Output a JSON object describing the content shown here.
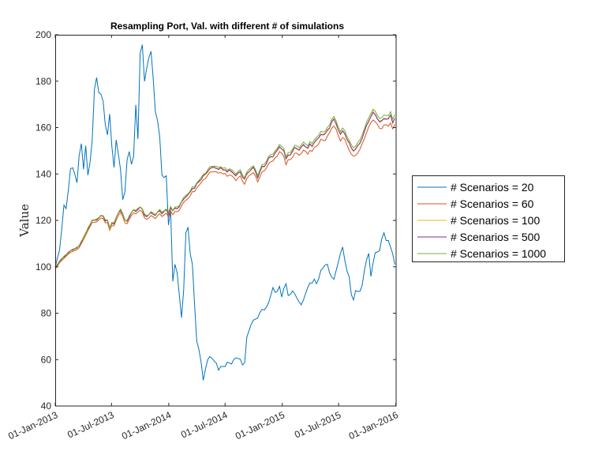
{
  "chart_data": {
    "type": "line",
    "title": "Resampling Port, Val. with different # of simulations",
    "xlabel": "",
    "ylabel": "Value",
    "x_start": "2013-01-01",
    "x_end": "2016-01-01",
    "x_step": "weekly",
    "xticks": [
      "01-Jan-2013",
      "01-Jul-2013",
      "01-Jan-2014",
      "01-Jul-2014",
      "01-Jan-2015",
      "01-Jul-2015",
      "01-Jan-2016"
    ],
    "ylim": [
      40,
      200
    ],
    "yticks": [
      "40",
      "60",
      "80",
      "100",
      "120",
      "140",
      "160",
      "180",
      "200"
    ],
    "grid": false,
    "legend_position": "outside-right",
    "series": [
      {
        "name": "# Scenarios = 20",
        "color": "#0072BD",
        "key": [
          [
            0,
            100
          ],
          [
            2,
            108
          ],
          [
            4,
            130
          ],
          [
            5,
            122
          ],
          [
            6,
            142
          ],
          [
            8,
            143
          ],
          [
            9,
            133
          ],
          [
            10,
            147
          ],
          [
            11,
            154
          ],
          [
            12,
            142
          ],
          [
            13,
            153
          ],
          [
            14,
            137
          ],
          [
            16,
            158
          ],
          [
            17,
            188
          ],
          [
            18,
            176
          ],
          [
            19,
            174
          ],
          [
            20,
            175
          ],
          [
            21,
            163
          ],
          [
            22,
            155
          ],
          [
            23,
            167
          ],
          [
            24,
            152
          ],
          [
            25,
            142
          ],
          [
            26,
            157
          ],
          [
            27,
            146
          ],
          [
            28,
            140
          ],
          [
            29,
            122
          ],
          [
            30,
            141
          ],
          [
            31,
            152
          ],
          [
            32,
            146
          ],
          [
            33,
            140
          ],
          [
            34,
            173
          ],
          [
            35,
            152
          ],
          [
            36,
            192
          ],
          [
            37,
            196
          ],
          [
            38,
            177
          ],
          [
            39,
            188
          ],
          [
            41,
            194
          ],
          [
            42,
            170
          ],
          [
            43,
            163
          ],
          [
            44,
            163
          ],
          [
            45,
            140
          ],
          [
            46,
            138
          ],
          [
            47,
            141
          ],
          [
            48,
            118
          ],
          [
            49,
            125
          ],
          [
            50,
            88
          ],
          [
            51,
            105
          ],
          [
            52,
            94
          ],
          [
            53,
            84
          ],
          [
            54,
            73
          ],
          [
            55,
            110
          ],
          [
            56,
            122
          ],
          [
            57,
            106
          ],
          [
            58,
            104
          ],
          [
            59,
            85
          ],
          [
            60,
            68
          ],
          [
            61,
            64
          ],
          [
            62,
            58
          ],
          [
            63,
            49
          ],
          [
            63.5,
            44
          ],
          [
            64,
            59
          ],
          [
            66,
            62
          ],
          [
            67,
            59
          ],
          [
            68,
            60
          ],
          [
            69,
            55
          ],
          [
            70,
            57
          ],
          [
            72,
            57
          ],
          [
            73,
            59
          ],
          [
            75,
            58
          ],
          [
            76,
            61
          ],
          [
            79,
            60
          ],
          [
            80,
            54
          ],
          [
            81,
            69
          ],
          [
            82,
            72
          ],
          [
            83,
            75
          ],
          [
            84,
            77
          ],
          [
            86,
            78
          ],
          [
            87,
            81
          ],
          [
            88,
            82
          ],
          [
            89,
            81
          ],
          [
            90,
            84
          ],
          [
            91,
            85
          ],
          [
            92,
            92
          ],
          [
            93,
            89
          ],
          [
            94,
            89
          ],
          [
            95,
            92
          ],
          [
            96,
            87
          ],
          [
            97,
            91
          ],
          [
            98,
            93
          ],
          [
            99,
            86
          ],
          [
            100,
            89
          ],
          [
            101,
            90
          ],
          [
            102,
            87
          ],
          [
            103,
            86
          ],
          [
            104,
            83
          ],
          [
            105,
            85
          ],
          [
            106,
            88
          ],
          [
            107,
            91
          ],
          [
            108,
            93
          ],
          [
            109,
            93
          ],
          [
            110,
            95
          ],
          [
            111,
            92
          ],
          [
            112,
            96
          ],
          [
            113,
            100
          ],
          [
            114,
            99
          ],
          [
            115,
            103
          ],
          [
            116,
            98
          ],
          [
            117,
            96
          ],
          [
            118,
            94
          ],
          [
            119,
            98
          ],
          [
            120,
            102
          ],
          [
            121,
            106
          ],
          [
            122,
            109
          ],
          [
            123,
            101
          ],
          [
            124,
            97
          ],
          [
            125,
            95
          ],
          [
            126,
            82
          ],
          [
            127,
            90
          ],
          [
            129,
            89
          ],
          [
            130,
            91
          ],
          [
            131,
            98
          ],
          [
            132,
            103
          ],
          [
            133,
            106
          ],
          [
            134,
            94
          ],
          [
            135,
            104
          ],
          [
            136,
            107
          ],
          [
            137,
            106
          ],
          [
            138,
            108
          ],
          [
            139,
            117
          ],
          [
            140,
            111
          ],
          [
            141,
            112
          ],
          [
            143,
            106
          ],
          [
            144,
            101
          ]
        ]
      },
      {
        "name": "# Scenarios = 60",
        "color": "#D95319",
        "offset_before": [
          0,
          0
        ],
        "offset_after": [
          -2.5,
          -1.5
        ]
      },
      {
        "name": "# Scenarios = 100",
        "color": "#EDB120",
        "offset_before": [
          0.8,
          0.5
        ],
        "offset_after": [
          1.5,
          0.5
        ]
      },
      {
        "name": "# Scenarios = 500",
        "color": "#7E2F8E",
        "offset_before": [
          0.4,
          0.8
        ],
        "offset_after": [
          1,
          1
        ]
      },
      {
        "name": "# Scenarios = 1000",
        "color": "#77AC30",
        "offset_before": [
          0.9,
          0.2
        ],
        "offset_after": [
          2.5,
          2.5
        ]
      }
    ],
    "base_key": [
      [
        0,
        99
      ],
      [
        2,
        102
      ],
      [
        4,
        104
      ],
      [
        6,
        106
      ],
      [
        8,
        107
      ],
      [
        10,
        108
      ],
      [
        11,
        110
      ],
      [
        12,
        112
      ],
      [
        13,
        114
      ],
      [
        14,
        116
      ],
      [
        15,
        118
      ],
      [
        16,
        120
      ],
      [
        17,
        119
      ],
      [
        18,
        120
      ],
      [
        19,
        121
      ],
      [
        20,
        122
      ],
      [
        21,
        119
      ],
      [
        22,
        120
      ],
      [
        23,
        116
      ],
      [
        24,
        118
      ],
      [
        25,
        118
      ],
      [
        26,
        121
      ],
      [
        27,
        123
      ],
      [
        28,
        124
      ],
      [
        29,
        121
      ],
      [
        30,
        118
      ],
      [
        31,
        120
      ],
      [
        32,
        122
      ],
      [
        33,
        124
      ],
      [
        34,
        123
      ],
      [
        35,
        124
      ],
      [
        36,
        125
      ],
      [
        37,
        124
      ],
      [
        38,
        121
      ],
      [
        39,
        121
      ],
      [
        40,
        122
      ],
      [
        41,
        123
      ],
      [
        42,
        121
      ],
      [
        43,
        122
      ],
      [
        44,
        124
      ],
      [
        45,
        122
      ],
      [
        46,
        123
      ],
      [
        47,
        124
      ],
      [
        48,
        122
      ],
      [
        49,
        125
      ],
      [
        50,
        123
      ],
      [
        51,
        125
      ],
      [
        52,
        124
      ],
      [
        53,
        126
      ],
      [
        54,
        128
      ],
      [
        55,
        129
      ],
      [
        56,
        130
      ],
      [
        57,
        131
      ],
      [
        58,
        133
      ],
      [
        59,
        133
      ],
      [
        60,
        135
      ],
      [
        61,
        136
      ],
      [
        62,
        137
      ],
      [
        63,
        139
      ],
      [
        64,
        139
      ],
      [
        65,
        141
      ],
      [
        66,
        142
      ],
      [
        67,
        142
      ],
      [
        68,
        142
      ],
      [
        69,
        141
      ],
      [
        70,
        142
      ],
      [
        71,
        141
      ],
      [
        72,
        141
      ],
      [
        73,
        140
      ],
      [
        74,
        141
      ],
      [
        75,
        140
      ],
      [
        76,
        139
      ],
      [
        77,
        138
      ],
      [
        78,
        141
      ],
      [
        79,
        139
      ],
      [
        80,
        136
      ],
      [
        81,
        139
      ],
      [
        82,
        140
      ],
      [
        83,
        141
      ],
      [
        84,
        142
      ],
      [
        85,
        140
      ],
      [
        86,
        137
      ],
      [
        87,
        141
      ],
      [
        88,
        143
      ],
      [
        89,
        142
      ],
      [
        90,
        145
      ],
      [
        91,
        147
      ],
      [
        92,
        146
      ],
      [
        93,
        148
      ],
      [
        94,
        149
      ],
      [
        95,
        151
      ],
      [
        96,
        150
      ],
      [
        97,
        149
      ],
      [
        98,
        145
      ],
      [
        99,
        148
      ],
      [
        100,
        147
      ],
      [
        101,
        150
      ],
      [
        102,
        151
      ],
      [
        103,
        149
      ],
      [
        104,
        150
      ],
      [
        105,
        152
      ],
      [
        106,
        151
      ],
      [
        107,
        150
      ],
      [
        108,
        152
      ],
      [
        109,
        151
      ],
      [
        110,
        153
      ],
      [
        111,
        154
      ],
      [
        112,
        155
      ],
      [
        113,
        157
      ],
      [
        114,
        155
      ],
      [
        115,
        158
      ],
      [
        116,
        158
      ],
      [
        117,
        161
      ],
      [
        118,
        163
      ],
      [
        119,
        161
      ],
      [
        120,
        158
      ],
      [
        121,
        156
      ],
      [
        122,
        158
      ],
      [
        123,
        156
      ],
      [
        124,
        153
      ],
      [
        125,
        152
      ],
      [
        126,
        149
      ],
      [
        127,
        149
      ],
      [
        128,
        151
      ],
      [
        129,
        152
      ],
      [
        130,
        154
      ],
      [
        131,
        157
      ],
      [
        132,
        160
      ],
      [
        133,
        162
      ],
      [
        134,
        164
      ],
      [
        135,
        166
      ],
      [
        136,
        164
      ],
      [
        137,
        162
      ],
      [
        138,
        161
      ],
      [
        139,
        163
      ],
      [
        140,
        163
      ],
      [
        141,
        162
      ],
      [
        142,
        165
      ],
      [
        143,
        161
      ],
      [
        144,
        163
      ]
    ]
  }
}
